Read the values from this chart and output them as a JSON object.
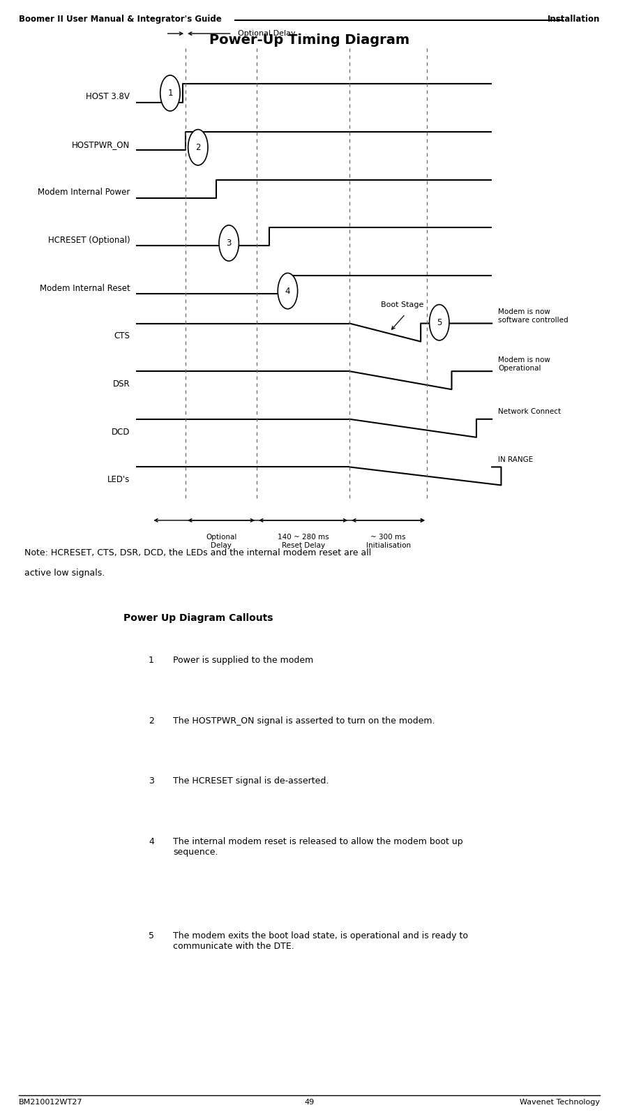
{
  "title": "Power-Up Timing Diagram",
  "header_left": "Boomer II User Manual & Integrator's Guide",
  "header_right": "Installation",
  "footer_left": "BM210012WT27",
  "footer_center": "49",
  "footer_right": "Wavenet Technology",
  "note_line1": "Note: HCRESET, CTS, DSR, DCD, the LEDs and the internal modem reset are all",
  "note_line2": "active low signals.",
  "callouts_title": "Power Up Diagram Callouts",
  "callouts": [
    {
      "num": "1",
      "text": "Power is supplied to the modem"
    },
    {
      "num": "2",
      "text": "The HOSTPWR_ON signal is asserted to turn on the modem."
    },
    {
      "num": "3",
      "text": "The HCRESET signal is de-asserted."
    },
    {
      "num": "4",
      "text": "The internal modem reset is released to allow the modem boot up\nsequence."
    },
    {
      "num": "5",
      "text": "The modem exits the boot load state, is operational and is ready to\ncommunicate with the DTE."
    }
  ],
  "signals": [
    "HOST 3.8V",
    "HOSTPWR_ON",
    "Modem Internal Power",
    "HCRESET (Optional)",
    "Modem Internal Reset",
    "CTS",
    "DSR",
    "DCD",
    "LED's"
  ],
  "bg_color": "#ffffff",
  "line_color": "#000000",
  "dashed_color": "#666666"
}
